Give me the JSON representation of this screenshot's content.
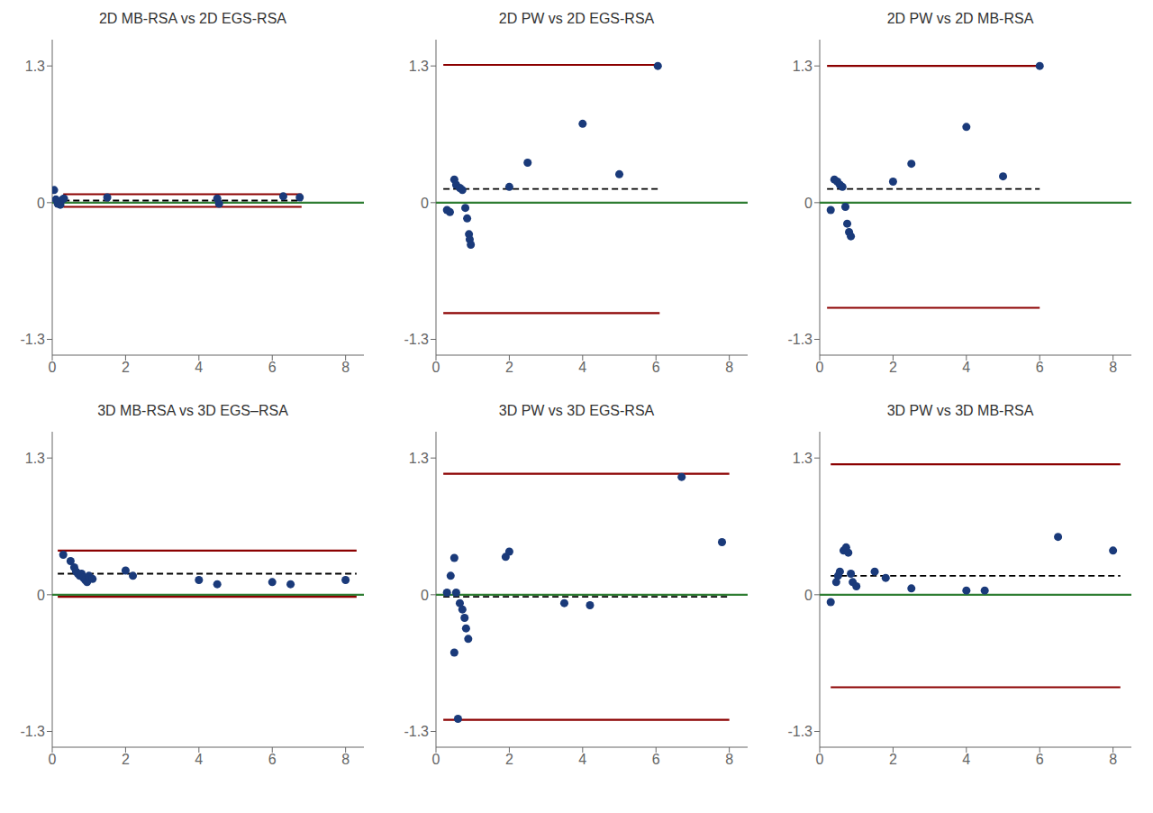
{
  "chart_data": [
    {
      "type": "scatter",
      "title": "2D MB-RSA vs 2D EGS-RSA",
      "xlim": [
        0,
        8.5
      ],
      "ylim": [
        -1.45,
        1.55
      ],
      "xticks": [
        0,
        2,
        4,
        6,
        8
      ],
      "yticks": [
        -1.3,
        0,
        1.3
      ],
      "grid": false,
      "series": [
        {
          "type": "line",
          "color": "#2e7d32",
          "line_style": "solid",
          "x": [
            0,
            8.5
          ],
          "values": [
            0,
            0
          ]
        },
        {
          "type": "line",
          "color": "black",
          "line_style": "dashed",
          "x": [
            0.3,
            6.8
          ],
          "values": [
            0.02,
            0.02
          ]
        },
        {
          "type": "line",
          "color": "#8b0000",
          "line_style": "solid",
          "x": [
            0.3,
            6.8
          ],
          "values": [
            0.08,
            0.08
          ]
        },
        {
          "type": "line",
          "color": "#8b0000",
          "line_style": "solid",
          "x": [
            0.3,
            6.8
          ],
          "values": [
            -0.04,
            -0.04
          ]
        },
        {
          "type": "scatter",
          "color": "#1a3a7a",
          "marker": "circle",
          "x": [
            0.05,
            0.1,
            0.15,
            0.18,
            0.22,
            0.28,
            0.32,
            1.5,
            4.5,
            4.55,
            6.3,
            6.75
          ],
          "values": [
            0.12,
            0.03,
            -0.01,
            0.01,
            -0.02,
            0.03,
            0.04,
            0.05,
            0.04,
            -0.01,
            0.06,
            0.05
          ]
        }
      ]
    },
    {
      "type": "scatter",
      "title": "2D PW vs 2D EGS-RSA",
      "xlim": [
        0,
        8.5
      ],
      "ylim": [
        -1.45,
        1.55
      ],
      "xticks": [
        0,
        2,
        4,
        6,
        8
      ],
      "yticks": [
        -1.3,
        0,
        1.3
      ],
      "grid": false,
      "series": [
        {
          "type": "line",
          "color": "#2e7d32",
          "line_style": "solid",
          "x": [
            0,
            8.5
          ],
          "values": [
            0,
            0
          ]
        },
        {
          "type": "line",
          "color": "black",
          "line_style": "dashed",
          "x": [
            0.2,
            6.1
          ],
          "values": [
            0.13,
            0.13
          ]
        },
        {
          "type": "line",
          "color": "#8b0000",
          "line_style": "solid",
          "x": [
            0.2,
            6.1
          ],
          "values": [
            1.31,
            1.31
          ]
        },
        {
          "type": "line",
          "color": "#8b0000",
          "line_style": "solid",
          "x": [
            0.2,
            6.1
          ],
          "values": [
            -1.05,
            -1.05
          ]
        },
        {
          "type": "scatter",
          "color": "#1a3a7a",
          "marker": "circle",
          "x": [
            0.3,
            0.38,
            0.5,
            0.55,
            0.65,
            0.72,
            0.8,
            0.85,
            0.9,
            0.92,
            0.95,
            2.0,
            2.5,
            4.0,
            5.0,
            6.05
          ],
          "values": [
            -0.07,
            -0.09,
            0.22,
            0.17,
            0.14,
            0.12,
            -0.05,
            -0.15,
            -0.3,
            -0.35,
            -0.4,
            0.15,
            0.38,
            0.75,
            0.27,
            1.3
          ]
        }
      ]
    },
    {
      "type": "scatter",
      "title": "2D PW vs 2D MB-RSA",
      "xlim": [
        0,
        8.5
      ],
      "ylim": [
        -1.45,
        1.55
      ],
      "xticks": [
        0,
        2,
        4,
        6,
        8
      ],
      "yticks": [
        -1.3,
        0,
        1.3
      ],
      "grid": false,
      "series": [
        {
          "type": "line",
          "color": "#2e7d32",
          "line_style": "solid",
          "x": [
            0,
            8.5
          ],
          "values": [
            0,
            0
          ]
        },
        {
          "type": "line",
          "color": "black",
          "line_style": "dashed",
          "x": [
            0.2,
            6.0
          ],
          "values": [
            0.13,
            0.13
          ]
        },
        {
          "type": "line",
          "color": "#8b0000",
          "line_style": "solid",
          "x": [
            0.2,
            6.0
          ],
          "values": [
            1.3,
            1.3
          ]
        },
        {
          "type": "line",
          "color": "#8b0000",
          "line_style": "solid",
          "x": [
            0.2,
            6.0
          ],
          "values": [
            -1.0,
            -1.0
          ]
        },
        {
          "type": "scatter",
          "color": "#1a3a7a",
          "marker": "circle",
          "x": [
            0.3,
            0.4,
            0.48,
            0.55,
            0.62,
            0.7,
            0.75,
            0.8,
            0.85,
            2.0,
            2.5,
            4.0,
            5.0,
            6.0
          ],
          "values": [
            -0.07,
            0.22,
            0.2,
            0.17,
            0.15,
            -0.04,
            -0.2,
            -0.28,
            -0.32,
            0.2,
            0.37,
            0.72,
            0.25,
            1.3
          ]
        }
      ]
    },
    {
      "type": "scatter",
      "title": "3D MB-RSA vs 3D EGS–RSA",
      "xlim": [
        0,
        8.5
      ],
      "ylim": [
        -1.45,
        1.55
      ],
      "xticks": [
        0,
        2,
        4,
        6,
        8
      ],
      "yticks": [
        -1.3,
        0,
        1.3
      ],
      "grid": false,
      "series": [
        {
          "type": "line",
          "color": "#2e7d32",
          "line_style": "solid",
          "x": [
            0,
            8.5
          ],
          "values": [
            0,
            0
          ]
        },
        {
          "type": "line",
          "color": "black",
          "line_style": "dashed",
          "x": [
            0.15,
            8.3
          ],
          "values": [
            0.2,
            0.2
          ]
        },
        {
          "type": "line",
          "color": "#8b0000",
          "line_style": "solid",
          "x": [
            0.15,
            8.3
          ],
          "values": [
            0.42,
            0.42
          ]
        },
        {
          "type": "line",
          "color": "#8b0000",
          "line_style": "solid",
          "x": [
            0.15,
            8.3
          ],
          "values": [
            -0.02,
            -0.02
          ]
        },
        {
          "type": "scatter",
          "color": "#1a3a7a",
          "marker": "circle",
          "x": [
            0.3,
            0.5,
            0.6,
            0.65,
            0.7,
            0.75,
            0.8,
            0.85,
            0.9,
            0.95,
            1.0,
            1.1,
            2.0,
            2.2,
            4.0,
            4.5,
            6.0,
            6.5,
            8.0
          ],
          "values": [
            0.38,
            0.32,
            0.26,
            0.22,
            0.2,
            0.18,
            0.2,
            0.16,
            0.14,
            0.12,
            0.18,
            0.15,
            0.23,
            0.18,
            0.14,
            0.1,
            0.12,
            0.1,
            0.14
          ]
        }
      ]
    },
    {
      "type": "scatter",
      "title": "3D PW vs 3D EGS-RSA",
      "xlim": [
        0,
        8.5
      ],
      "ylim": [
        -1.45,
        1.55
      ],
      "xticks": [
        0,
        2,
        4,
        6,
        8
      ],
      "yticks": [
        -1.3,
        0,
        1.3
      ],
      "grid": false,
      "series": [
        {
          "type": "line",
          "color": "#2e7d32",
          "line_style": "solid",
          "x": [
            0,
            8.5
          ],
          "values": [
            0,
            0
          ]
        },
        {
          "type": "line",
          "color": "black",
          "line_style": "dashed",
          "x": [
            0.2,
            8.0
          ],
          "values": [
            -0.02,
            -0.02
          ]
        },
        {
          "type": "line",
          "color": "#8b0000",
          "line_style": "solid",
          "x": [
            0.2,
            8.0
          ],
          "values": [
            1.15,
            1.15
          ]
        },
        {
          "type": "line",
          "color": "#8b0000",
          "line_style": "solid",
          "x": [
            0.2,
            8.0
          ],
          "values": [
            -1.19,
            -1.19
          ]
        },
        {
          "type": "scatter",
          "color": "#1a3a7a",
          "marker": "circle",
          "x": [
            0.3,
            0.4,
            0.5,
            0.55,
            0.65,
            0.72,
            0.78,
            0.82,
            0.88,
            0.5,
            0.6,
            1.9,
            2.0,
            3.5,
            4.2,
            6.7,
            7.8
          ],
          "values": [
            0.02,
            0.18,
            0.35,
            0.02,
            -0.08,
            -0.14,
            -0.22,
            -0.32,
            -0.42,
            -0.55,
            -1.18,
            0.36,
            0.41,
            -0.08,
            -0.1,
            1.12,
            0.5
          ]
        }
      ]
    },
    {
      "type": "scatter",
      "title": "3D PW vs 3D MB-RSA",
      "xlim": [
        0,
        8.5
      ],
      "ylim": [
        -1.45,
        1.55
      ],
      "xticks": [
        0,
        2,
        4,
        6,
        8
      ],
      "yticks": [
        -1.3,
        0,
        1.3
      ],
      "grid": false,
      "series": [
        {
          "type": "line",
          "color": "#2e7d32",
          "line_style": "solid",
          "x": [
            0,
            8.5
          ],
          "values": [
            0,
            0
          ]
        },
        {
          "type": "line",
          "color": "black",
          "line_style": "dashed",
          "x": [
            0.3,
            8.2
          ],
          "values": [
            0.18,
            0.18
          ]
        },
        {
          "type": "line",
          "color": "#8b0000",
          "line_style": "solid",
          "x": [
            0.3,
            8.2
          ],
          "values": [
            1.24,
            1.24
          ]
        },
        {
          "type": "line",
          "color": "#8b0000",
          "line_style": "solid",
          "x": [
            0.3,
            8.2
          ],
          "values": [
            -0.88,
            -0.88
          ]
        },
        {
          "type": "scatter",
          "color": "#1a3a7a",
          "marker": "circle",
          "x": [
            0.3,
            0.45,
            0.5,
            0.55,
            0.65,
            0.72,
            0.78,
            0.85,
            0.9,
            1.0,
            1.5,
            1.8,
            2.5,
            4.0,
            4.5,
            6.5,
            8.0
          ],
          "values": [
            -0.07,
            0.12,
            0.18,
            0.22,
            0.42,
            0.45,
            0.4,
            0.2,
            0.12,
            0.08,
            0.22,
            0.16,
            0.06,
            0.04,
            0.04,
            0.55,
            0.42
          ]
        }
      ]
    }
  ]
}
